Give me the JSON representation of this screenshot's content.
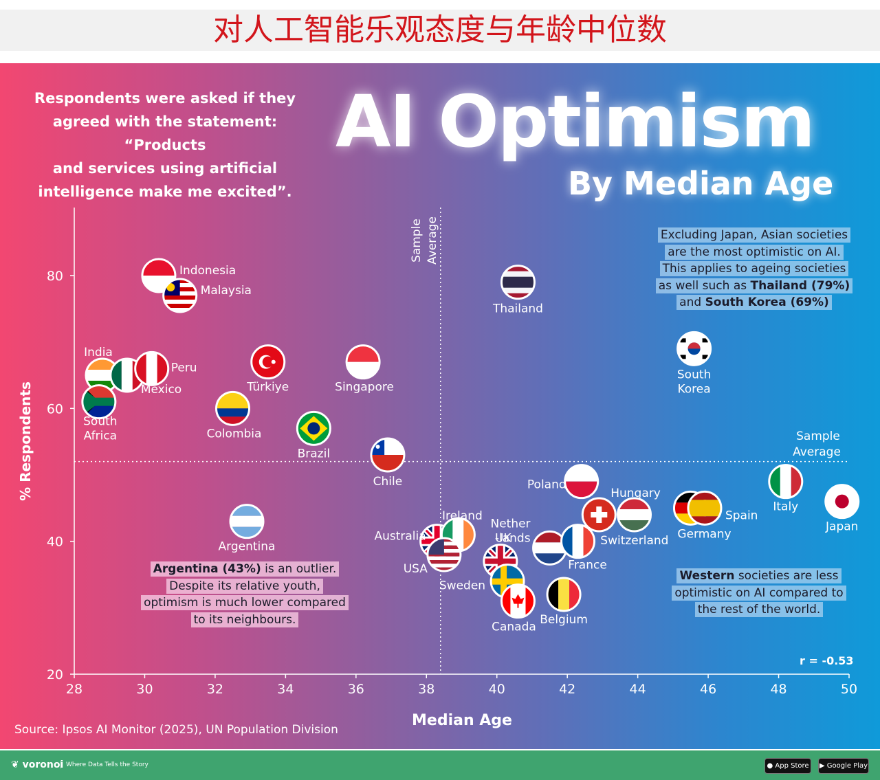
{
  "banner": {
    "title": "对人工智能乐观态度与年龄中位数"
  },
  "header": {
    "question_lines": [
      "Respondents were asked if they",
      "agreed with the statement: “Products",
      "and services using artificial",
      "intelligence make me excited”."
    ],
    "title": "AI Optimism",
    "subtitle": "By Median Age"
  },
  "notes": {
    "asia": {
      "lines": [
        "Excluding Japan, Asian societies",
        "are the most optimistic on AI.",
        "This applies to ageing societies",
        "as well such as ",
        "Thailand (79%)",
        "and ",
        "South Korea (69%)"
      ]
    },
    "argentina": {
      "bold": "Argentina (43%)",
      "rest": " is an outlier.",
      "lines": [
        "Despite its relative youth,",
        "optimism is much lower compared",
        "to its neighbours."
      ]
    },
    "western": {
      "bold": "Western",
      "rest": " societies are less",
      "lines": [
        "optimistic on AI compared to",
        "the rest of the world."
      ]
    }
  },
  "source": "Source: Ipsos AI Monitor (2025), UN Population Division",
  "correlation": "r = -0.53",
  "footer": {
    "brand": "voronoi",
    "tagline": "Where Data Tells the Story",
    "app_store": "App Store",
    "google_play": "Google Play"
  },
  "chart_data": {
    "type": "scatter",
    "title": "AI Optimism",
    "subtitle": "By Median Age",
    "xlabel": "Median Age",
    "ylabel": "% Respondents",
    "xlim": [
      28,
      50
    ],
    "ylim": [
      20,
      88
    ],
    "xticks": [
      28,
      30,
      32,
      34,
      36,
      38,
      40,
      42,
      44,
      46,
      48,
      50
    ],
    "yticks": [
      20,
      40,
      60,
      80
    ],
    "sample_average_x": 38.4,
    "sample_average_y": 52,
    "sample_average_x_label": [
      "Sample",
      "Average"
    ],
    "sample_average_y_label": [
      "Sample",
      "Average"
    ],
    "points": [
      {
        "country": "Indonesia",
        "x": 30.4,
        "y": 80,
        "colors": [
          "#e8112d",
          "#ffffff"
        ],
        "flag": "h2"
      },
      {
        "country": "Malaysia",
        "x": 31.0,
        "y": 77,
        "colors": [
          "#cc0001",
          "#ffffff",
          "#010066",
          "#ffcc00"
        ],
        "flag": "my"
      },
      {
        "country": "India",
        "x": 28.8,
        "y": 65,
        "colors": [
          "#ff9933",
          "#ffffff",
          "#138808"
        ],
        "flag": "h3"
      },
      {
        "country": "Mexico",
        "x": 29.5,
        "y": 65,
        "colors": [
          "#006847",
          "#ffffff",
          "#ce1126"
        ],
        "flag": "v3"
      },
      {
        "country": "Peru",
        "x": 30.2,
        "y": 66,
        "colors": [
          "#d91023",
          "#ffffff",
          "#d91023"
        ],
        "flag": "v3"
      },
      {
        "country": "South Africa",
        "x": 28.7,
        "y": 61,
        "colors": [
          "#007a4d",
          "#de3831",
          "#002395",
          "#ffb612"
        ],
        "flag": "za"
      },
      {
        "country": "Türkiye",
        "x": 33.5,
        "y": 67,
        "colors": [
          "#e30a17",
          "#ffffff"
        ],
        "flag": "tr"
      },
      {
        "country": "Singapore",
        "x": 36.2,
        "y": 67,
        "colors": [
          "#ef3340",
          "#ffffff"
        ],
        "flag": "h2"
      },
      {
        "country": "Colombia",
        "x": 32.5,
        "y": 60,
        "colors": [
          "#fcd116",
          "#003893",
          "#ce1126"
        ],
        "flag": "co"
      },
      {
        "country": "Brazil",
        "x": 34.8,
        "y": 57,
        "colors": [
          "#009c3b",
          "#ffdf00",
          "#002776"
        ],
        "flag": "br"
      },
      {
        "country": "Chile",
        "x": 36.9,
        "y": 53,
        "colors": [
          "#ffffff",
          "#d52b1e",
          "#0039a6"
        ],
        "flag": "cl"
      },
      {
        "country": "Thailand",
        "x": 40.6,
        "y": 79,
        "colors": [
          "#a51931",
          "#f4f5f8",
          "#2d2a4a"
        ],
        "flag": "th"
      },
      {
        "country": "South Korea",
        "x": 45.6,
        "y": 69,
        "colors": [
          "#ffffff",
          "#cd2e3a",
          "#0047a0"
        ],
        "flag": "kr"
      },
      {
        "country": "Argentina",
        "x": 32.9,
        "y": 43,
        "colors": [
          "#74acdf",
          "#ffffff",
          "#74acdf"
        ],
        "flag": "h3"
      },
      {
        "country": "Australia",
        "x": 38.3,
        "y": 40,
        "colors": [
          "#012169",
          "#ffffff",
          "#e4002b"
        ],
        "flag": "gb"
      },
      {
        "country": "Ireland",
        "x": 38.9,
        "y": 41,
        "colors": [
          "#169b62",
          "#ffffff",
          "#ff883e"
        ],
        "flag": "v3"
      },
      {
        "country": "USA",
        "x": 38.5,
        "y": 38,
        "colors": [
          "#b22234",
          "#ffffff",
          "#3c3b6e"
        ],
        "flag": "us"
      },
      {
        "country": "UK",
        "x": 40.1,
        "y": 37,
        "colors": [
          "#012169",
          "#ffffff",
          "#c8102e"
        ],
        "flag": "gb"
      },
      {
        "country": "Sweden",
        "x": 40.3,
        "y": 34,
        "colors": [
          "#006aa7",
          "#fecc00"
        ],
        "flag": "se"
      },
      {
        "country": "Canada",
        "x": 40.6,
        "y": 31,
        "colors": [
          "#ff0000",
          "#ffffff",
          "#ff0000"
        ],
        "flag": "ca"
      },
      {
        "country": "Netherlands",
        "x": 41.5,
        "y": 39,
        "colors": [
          "#ae1c28",
          "#ffffff",
          "#21468b"
        ],
        "flag": "h3"
      },
      {
        "country": "Poland",
        "x": 42.4,
        "y": 49,
        "colors": [
          "#ffffff",
          "#dc143c"
        ],
        "flag": "h2"
      },
      {
        "country": "France",
        "x": 42.3,
        "y": 40,
        "colors": [
          "#0055a4",
          "#ffffff",
          "#ef4135"
        ],
        "flag": "v3"
      },
      {
        "country": "Switzerland",
        "x": 42.9,
        "y": 44,
        "colors": [
          "#d52b1e",
          "#ffffff"
        ],
        "flag": "ch"
      },
      {
        "country": "Hungary",
        "x": 43.9,
        "y": 44,
        "colors": [
          "#ce2939",
          "#ffffff",
          "#477050"
        ],
        "flag": "h3"
      },
      {
        "country": "Belgium",
        "x": 41.9,
        "y": 32,
        "colors": [
          "#000000",
          "#fae042",
          "#ed2939"
        ],
        "flag": "v3"
      },
      {
        "country": "Germany",
        "x": 45.5,
        "y": 45,
        "colors": [
          "#000000",
          "#dd0000",
          "#ffce00"
        ],
        "flag": "h3"
      },
      {
        "country": "Spain",
        "x": 45.9,
        "y": 45,
        "colors": [
          "#aa151b",
          "#f1bf00",
          "#aa151b"
        ],
        "flag": "es"
      },
      {
        "country": "Italy",
        "x": 48.2,
        "y": 49,
        "colors": [
          "#009246",
          "#ffffff",
          "#ce2b37"
        ],
        "flag": "v3"
      },
      {
        "country": "Japan",
        "x": 49.8,
        "y": 46,
        "colors": [
          "#ffffff",
          "#bc002d"
        ],
        "flag": "jp"
      }
    ]
  }
}
